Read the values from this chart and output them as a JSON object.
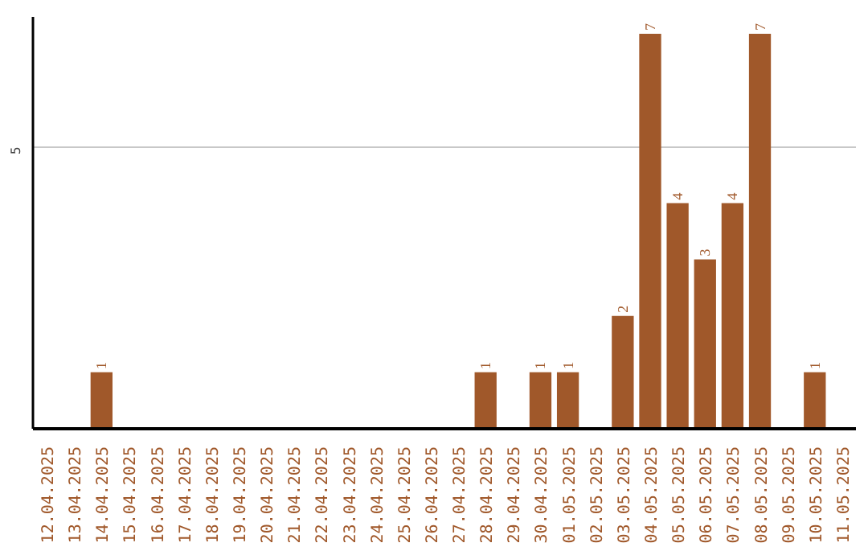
{
  "chart_data": {
    "type": "bar",
    "categories": [
      "12.04.2025",
      "13.04.2025",
      "14.04.2025",
      "15.04.2025",
      "16.04.2025",
      "17.04.2025",
      "18.04.2025",
      "19.04.2025",
      "20.04.2025",
      "21.04.2025",
      "22.04.2025",
      "23.04.2025",
      "24.04.2025",
      "25.04.2025",
      "26.04.2025",
      "27.04.2025",
      "28.04.2025",
      "29.04.2025",
      "30.04.2025",
      "01.05.2025",
      "02.05.2025",
      "03.05.2025",
      "04.05.2025",
      "05.05.2025",
      "06.05.2025",
      "07.05.2025",
      "08.05.2025",
      "09.05.2025",
      "10.05.2025",
      "11.05.2025"
    ],
    "values": [
      0,
      0,
      1,
      0,
      0,
      0,
      0,
      0,
      0,
      0,
      0,
      0,
      0,
      0,
      0,
      0,
      1,
      0,
      1,
      1,
      0,
      2,
      7,
      4,
      3,
      4,
      7,
      0,
      1,
      0
    ],
    "value_labels": [
      null,
      null,
      "1",
      null,
      null,
      null,
      null,
      null,
      null,
      null,
      null,
      null,
      null,
      null,
      null,
      null,
      "1",
      null,
      "1",
      "1",
      null,
      "2",
      "7",
      "4",
      "3",
      "4",
      "7",
      null,
      "1",
      null
    ],
    "color": "#a0582a",
    "ylim": [
      0,
      7.3
    ],
    "yticks": [
      5
    ],
    "grid": "y"
  }
}
